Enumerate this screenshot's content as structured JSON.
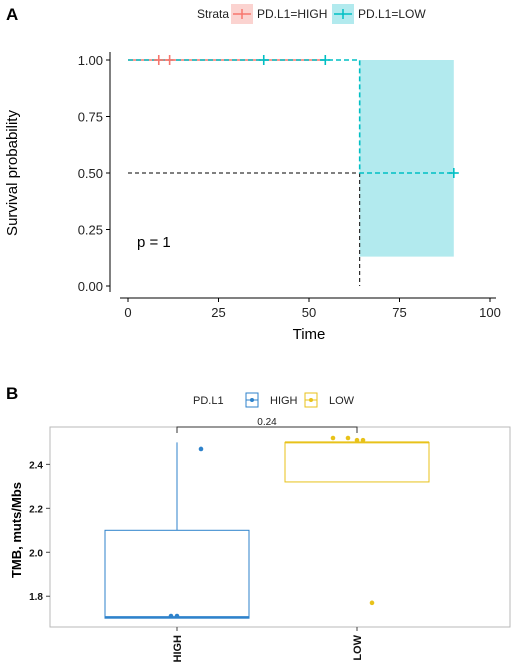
{
  "panels": [
    {
      "letter": "A",
      "chart_data": {
        "type": "line",
        "subtype": "kaplan-meier",
        "legend": {
          "title": "Strata",
          "placement": "top",
          "entries": [
            "PD.L1=HIGH",
            "PD.L1=LOW"
          ]
        },
        "xlabel": "Time",
        "ylabel": "Survival probability",
        "xlim": [
          0,
          100
        ],
        "ylim": [
          0,
          1
        ],
        "xticks": [
          0,
          25,
          50,
          75,
          100
        ],
        "yticks": [
          0.0,
          0.25,
          0.5,
          0.75,
          1.0
        ],
        "x_tick_labels": [
          "0",
          "25",
          "50",
          "75",
          "100"
        ],
        "y_tick_labels": [
          "0.00",
          "0.25",
          "0.50",
          "0.75",
          "1.00"
        ],
        "grid": false,
        "annotation": "p = 1",
        "series": [
          {
            "color": "#f8766d",
            "steps": [
              [
                0,
                1.0
              ],
              [
                54,
                1.0
              ]
            ],
            "censored": [
              [
                8.5,
                1.0
              ],
              [
                11.5,
                1.0
              ]
            ]
          },
          {
            "color": "#00bfc4",
            "steps": [
              [
                0,
                1.0
              ],
              [
                64,
                1.0
              ],
              [
                64,
                0.5
              ],
              [
                90,
                0.5
              ]
            ],
            "censored": [
              [
                37.5,
                1.0
              ],
              [
                54.5,
                1.0
              ],
              [
                90,
                0.5
              ]
            ],
            "ci_band": {
              "x": [
                64,
                90
              ],
              "y": [
                0.13,
                1.0
              ],
              "color": "#b2eaee"
            }
          }
        ],
        "median_lines": {
          "y": 0.5,
          "x": 64
        }
      }
    },
    {
      "letter": "B",
      "chart_data": {
        "type": "box",
        "legend": {
          "title": "PD.L1",
          "placement": "top",
          "entries": [
            "HIGH",
            "LOW"
          ]
        },
        "categories": [
          "HIGH",
          "LOW"
        ],
        "ylabel": "TMB, muts/Mbs",
        "ylim": [
          1.66,
          2.57
        ],
        "yticks": [
          1.8,
          2.0,
          2.2,
          2.4
        ],
        "y_tick_labels": [
          "1.8",
          "2.0",
          "2.2",
          "2.4"
        ],
        "grid": false,
        "comparison": {
          "label": "0.24",
          "y": 2.57
        },
        "series": [
          {
            "name": "HIGH",
            "color": "#2e82cb",
            "box": {
              "whisker_low": 1.7,
              "q1": 1.7,
              "median": 1.705,
              "q3": 2.1,
              "whisker_high": 2.5
            },
            "points": [
              [
                -0.02,
                1.71
              ],
              [
                0.0,
                1.71
              ],
              [
                0.08,
                2.47
              ]
            ]
          },
          {
            "name": "LOW",
            "color": "#e8c21a",
            "box": {
              "whisker_low": 2.32,
              "q1": 2.32,
              "median": 2.5,
              "q3": 2.5,
              "whisker_high": 2.5
            },
            "points": [
              [
                -0.08,
                2.52
              ],
              [
                -0.03,
                2.52
              ],
              [
                0.0,
                2.51
              ],
              [
                0.02,
                2.51
              ],
              [
                0.05,
                1.77
              ]
            ]
          }
        ]
      }
    }
  ]
}
